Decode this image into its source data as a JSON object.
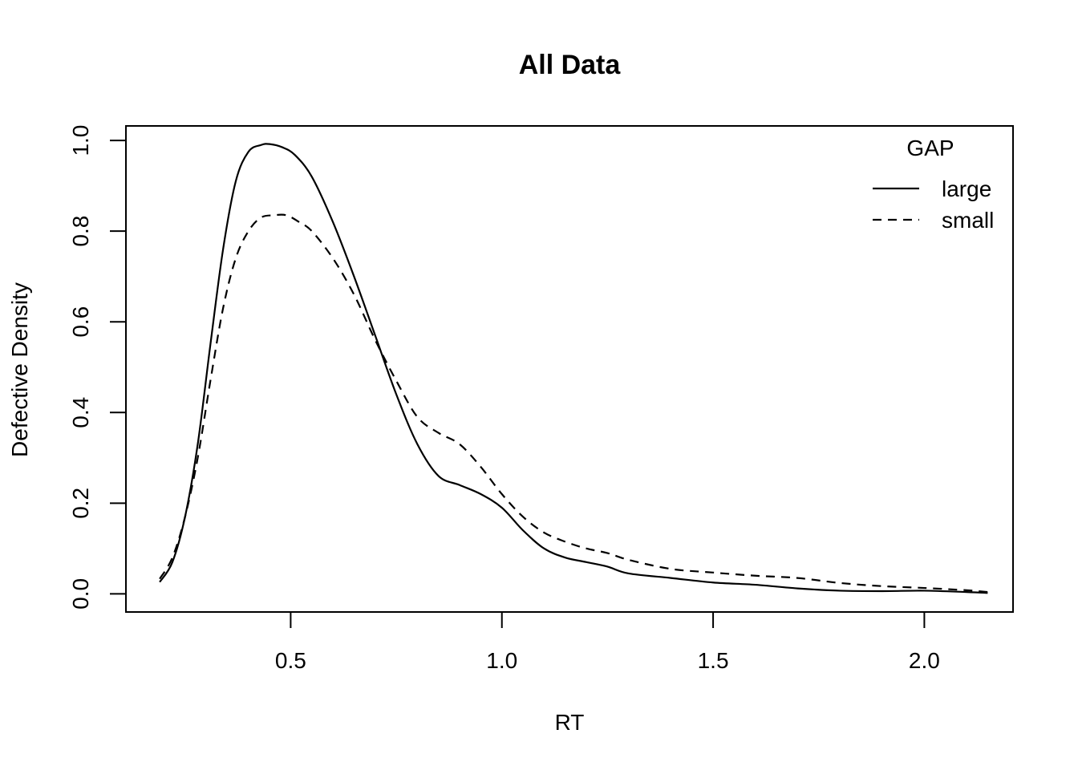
{
  "chart_data": {
    "type": "line",
    "title": "All Data",
    "xlabel": "RT",
    "ylabel": "Defective Density",
    "xlim": [
      0.11,
      2.21
    ],
    "ylim": [
      -0.04,
      1.032
    ],
    "xticks": [
      0.5,
      1.0,
      1.5,
      2.0
    ],
    "xtick_labels": [
      "0.5",
      "1.0",
      "1.5",
      "2.0"
    ],
    "yticks": [
      0.0,
      0.2,
      0.4,
      0.6,
      0.8,
      1.0
    ],
    "ytick_labels": [
      "0.0",
      "0.2",
      "0.4",
      "0.6",
      "0.8",
      "1.0"
    ],
    "grid": false,
    "legend": {
      "title": "GAP",
      "position": "top-right",
      "boxed": false
    },
    "series": [
      {
        "name": "large",
        "line_style": "solid",
        "x": [
          0.19,
          0.22,
          0.25,
          0.28,
          0.31,
          0.34,
          0.37,
          0.4,
          0.43,
          0.45,
          0.48,
          0.51,
          0.55,
          0.6,
          0.65,
          0.7,
          0.75,
          0.8,
          0.85,
          0.9,
          0.95,
          1.0,
          1.05,
          1.1,
          1.15,
          1.2,
          1.25,
          1.3,
          1.4,
          1.5,
          1.6,
          1.7,
          1.8,
          1.9,
          2.0,
          2.1,
          2.15
        ],
        "values": [
          0.026,
          0.07,
          0.17,
          0.33,
          0.55,
          0.76,
          0.91,
          0.975,
          0.99,
          0.992,
          0.985,
          0.968,
          0.92,
          0.82,
          0.7,
          0.57,
          0.44,
          0.33,
          0.26,
          0.24,
          0.22,
          0.19,
          0.14,
          0.1,
          0.08,
          0.07,
          0.06,
          0.045,
          0.035,
          0.025,
          0.02,
          0.012,
          0.007,
          0.006,
          0.007,
          0.004,
          0.002
        ]
      },
      {
        "name": "small",
        "line_style": "dashed",
        "x": [
          0.19,
          0.22,
          0.25,
          0.28,
          0.31,
          0.34,
          0.37,
          0.4,
          0.43,
          0.46,
          0.49,
          0.52,
          0.55,
          0.6,
          0.65,
          0.7,
          0.75,
          0.8,
          0.85,
          0.9,
          0.95,
          1.0,
          1.05,
          1.1,
          1.15,
          1.2,
          1.25,
          1.3,
          1.4,
          1.5,
          1.6,
          1.7,
          1.8,
          1.9,
          2.0,
          2.1,
          2.15
        ],
        "values": [
          0.033,
          0.08,
          0.17,
          0.3,
          0.47,
          0.63,
          0.74,
          0.8,
          0.83,
          0.835,
          0.835,
          0.82,
          0.8,
          0.74,
          0.66,
          0.56,
          0.47,
          0.39,
          0.355,
          0.33,
          0.28,
          0.22,
          0.17,
          0.135,
          0.115,
          0.1,
          0.09,
          0.075,
          0.055,
          0.047,
          0.04,
          0.035,
          0.024,
          0.017,
          0.013,
          0.008,
          0.004
        ]
      }
    ]
  }
}
